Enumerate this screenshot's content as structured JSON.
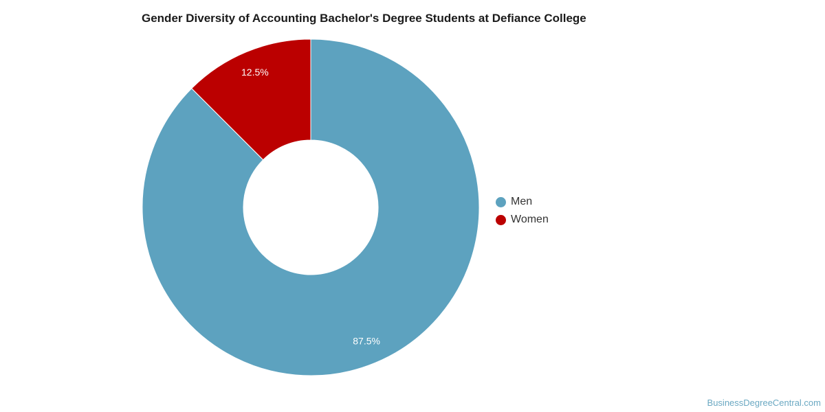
{
  "chart_data": {
    "type": "pie",
    "title": "Gender Diversity of Accounting Bachelor's Degree Students at Defiance College",
    "categories": [
      "Men",
      "Women"
    ],
    "values": [
      87.5,
      12.5
    ],
    "labels": [
      "87.5%",
      "12.5%"
    ],
    "colors": [
      "#5da2bf",
      "#bb0000"
    ],
    "donut": true,
    "legend_position": "right"
  },
  "legend": {
    "items": [
      {
        "label": "Men",
        "color": "#5da2bf"
      },
      {
        "label": "Women",
        "color": "#bb0000"
      }
    ]
  },
  "credit": "BusinessDegreeCentral.com"
}
